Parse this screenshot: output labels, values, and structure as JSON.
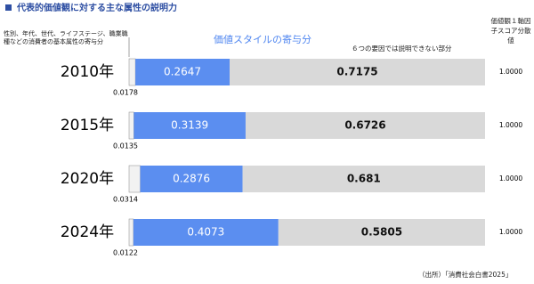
{
  "chart_data": {
    "type": "stacked-bar-horizontal",
    "title": "代表的価値観に対する主な属性の説明力",
    "categories": [
      "2010年",
      "2015年",
      "2020年",
      "2024年"
    ],
    "xlim": [
      0,
      1
    ],
    "series": [
      {
        "name": "性別、年代、世代、ライフステージ、職業職種などの消費者の基本属性の寄与分",
        "color": "#f2f2f2",
        "values": [
          0.0178,
          0.0135,
          0.0314,
          0.0122
        ]
      },
      {
        "name": "価値スタイルの寄与分",
        "color": "#5b8ef0",
        "values": [
          0.2647,
          0.3139,
          0.2876,
          0.4073
        ]
      },
      {
        "name": "６つの要因では説明できない部分",
        "color": "#d9d9d9",
        "values": [
          0.7175,
          0.6726,
          0.681,
          0.5805
        ]
      }
    ],
    "totals": {
      "name": "価値観１軸因子スコア分散値",
      "values": [
        1,
        1,
        1,
        1
      ],
      "value_labels": [
        "1.0000",
        "1.0000",
        "1.0000",
        "1.0000"
      ]
    },
    "source": "（出所）「消費社会白書2025」"
  }
}
